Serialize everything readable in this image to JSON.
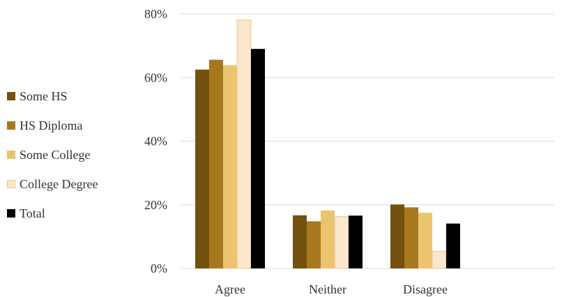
{
  "chart_data": {
    "type": "bar",
    "categories": [
      "Agree",
      "Neither",
      "Disagree"
    ],
    "series": [
      {
        "name": "Some HS",
        "values": [
          62.5,
          16.7,
          20.1
        ],
        "color": "#73520f",
        "border": null
      },
      {
        "name": "HS Diploma",
        "values": [
          65.6,
          14.8,
          19.2
        ],
        "color": "#a8781f",
        "border": null
      },
      {
        "name": "Some College",
        "values": [
          63.9,
          18.2,
          17.5
        ],
        "color": "#ecc46f",
        "border": null
      },
      {
        "name": "College Degree",
        "values": [
          78.1,
          16.3,
          5.4
        ],
        "color": "#fbe7cc",
        "border": "#eec58b"
      },
      {
        "name": "Total",
        "values": [
          69.0,
          16.6,
          14.1
        ],
        "color": "#000000",
        "border": null
      }
    ],
    "yticks": [
      "0%",
      "20%",
      "40%",
      "60%",
      "80%"
    ],
    "ylim": [
      0,
      80
    ],
    "grid": true,
    "legend_position": "left",
    "title": "",
    "xlabel": "",
    "ylabel": ""
  }
}
